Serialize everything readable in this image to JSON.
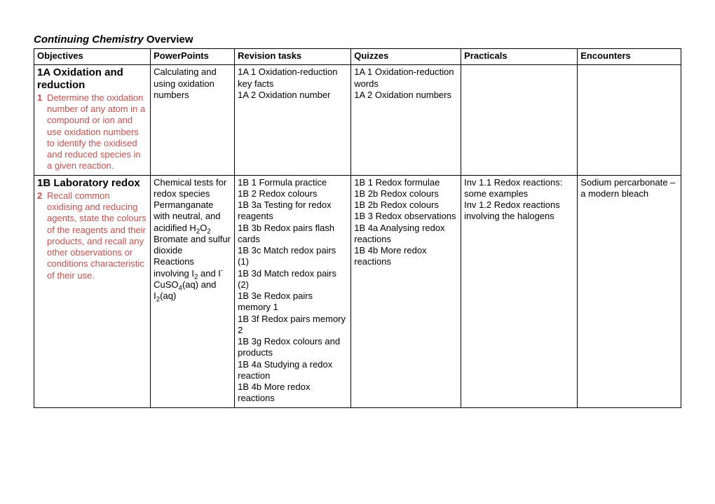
{
  "title_italic": "Continuing Chemistry",
  "title_rest": " Overview",
  "columns": {
    "widths": [
      "18%",
      "13%",
      "18%",
      "17%",
      "18%",
      "16%"
    ]
  },
  "headers": [
    "Objectives",
    "PowerPoints",
    "Revision tasks",
    "Quizzes",
    "Practicals",
    "Encounters"
  ],
  "shaded_header_indexes": [
    2,
    3
  ],
  "rows": [
    {
      "objective": {
        "title": "1A Oxidation and reduction",
        "num": "1",
        "text": "Determine the oxidation number of any atom in a compound or ion and use oxidation numbers to identify the oxidised and reduced species in a given reaction."
      },
      "powerpoints": [
        "Calculating and using oxidation numbers"
      ],
      "revision": [
        "1A 1 Oxidation-reduction key facts",
        "1A 2 Oxidation number"
      ],
      "quizzes": [
        "1A 1 Oxidation-reduction words",
        "1A 2 Oxidation numbers"
      ],
      "practicals": [],
      "encounters": []
    },
    {
      "objective": {
        "title": "1B Laboratory redox",
        "num": "2",
        "text": "Recall common oxidising and reducing agents, state the colours of the reagents and their products, and recall any other observations or conditions characteristic of their use."
      },
      "powerpoints_rich": [
        "Chemical tests for redox species",
        "Permanganate with neutral, and acidified H<sub>2</sub>O<sub>2</sub>",
        "Bromate and sulfur dioxide",
        "Reactions involving I<sub>2</sub> and I<sup>-</sup>",
        "CuSO<sub>4</sub>(aq) and I<sub>2</sub>(aq)"
      ],
      "revision": [
        "1B 1 Formula practice",
        "1B 2 Redox colours",
        "1B 3a Testing for redox reagents",
        "1B 3b Redox pairs flash cards",
        "1B 3c Match redox pairs (1)",
        "1B 3d Match redox pairs (2)",
        "1B 3e Redox pairs memory 1",
        "1B 3f Redox pairs memory 2",
        "1B 3g Redox colours and products",
        "1B 4a Studying a redox reaction",
        "1B 4b More redox reactions"
      ],
      "quizzes": [
        "1B 1 Redox formulae",
        "1B 2b Redox colours",
        "1B 2b Redox colours",
        "1B 3 Redox observations",
        "1B 4a Analysing redox reactions",
        "1B 4b More redox reactions"
      ],
      "practicals": [
        "Inv 1.1 Redox reactions: some examples",
        "Inv 1.2 Redox reactions involving the halogens"
      ],
      "encounters": [
        "Sodium percarbonate – a modern bleach"
      ]
    }
  ]
}
